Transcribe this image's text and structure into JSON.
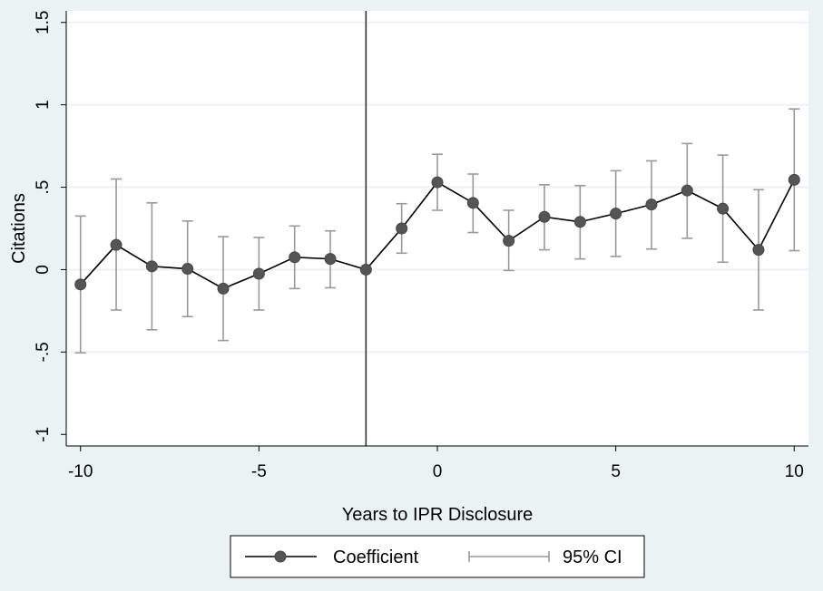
{
  "chart_data": {
    "type": "line",
    "title": "",
    "xlabel": "Years to IPR Disclosure",
    "ylabel": "Citations",
    "xlim": [
      -10.4,
      10.4
    ],
    "ylim": [
      -1.07,
      1.57
    ],
    "x_ticks": [
      -10,
      -5,
      0,
      5,
      10
    ],
    "x_tick_labels": [
      "-10",
      "-5",
      "0",
      "5",
      "10"
    ],
    "y_ticks": [
      -1,
      -0.5,
      0,
      0.5,
      1,
      1.5
    ],
    "y_tick_labels": [
      "-1",
      "-.5",
      "0",
      ".5",
      "1",
      "1.5"
    ],
    "grid": true,
    "reference_line_x": -2,
    "legend_position": "bottom",
    "colors": {
      "background": "#eaf2f3",
      "plot_background": "#ffffff",
      "gridline": "#eaf2f3",
      "line": "#000000",
      "marker": "#555555",
      "ci": "#999999"
    },
    "x": [
      -10,
      -9,
      -8,
      -7,
      -6,
      -5,
      -4,
      -3,
      -2,
      -1,
      0,
      1,
      2,
      3,
      4,
      5,
      6,
      7,
      8,
      9,
      10
    ],
    "series": [
      {
        "name": "Coefficient",
        "values": [
          -0.09,
          0.15,
          0.02,
          0.005,
          -0.115,
          -0.025,
          0.075,
          0.065,
          0.0,
          0.25,
          0.53,
          0.405,
          0.175,
          0.32,
          0.29,
          0.34,
          0.395,
          0.48,
          0.37,
          0.12,
          0.545
        ]
      },
      {
        "name": "95% CI",
        "lower": [
          -0.505,
          -0.245,
          -0.365,
          -0.285,
          -0.43,
          -0.245,
          -0.115,
          -0.11,
          0.0,
          0.1,
          0.36,
          0.225,
          -0.005,
          0.12,
          0.065,
          0.08,
          0.125,
          0.19,
          0.045,
          -0.245,
          0.115
        ],
        "upper": [
          0.325,
          0.55,
          0.405,
          0.295,
          0.2,
          0.195,
          0.265,
          0.235,
          0.0,
          0.4,
          0.7,
          0.58,
          0.36,
          0.515,
          0.51,
          0.6,
          0.66,
          0.765,
          0.695,
          0.485,
          0.975
        ]
      }
    ]
  }
}
